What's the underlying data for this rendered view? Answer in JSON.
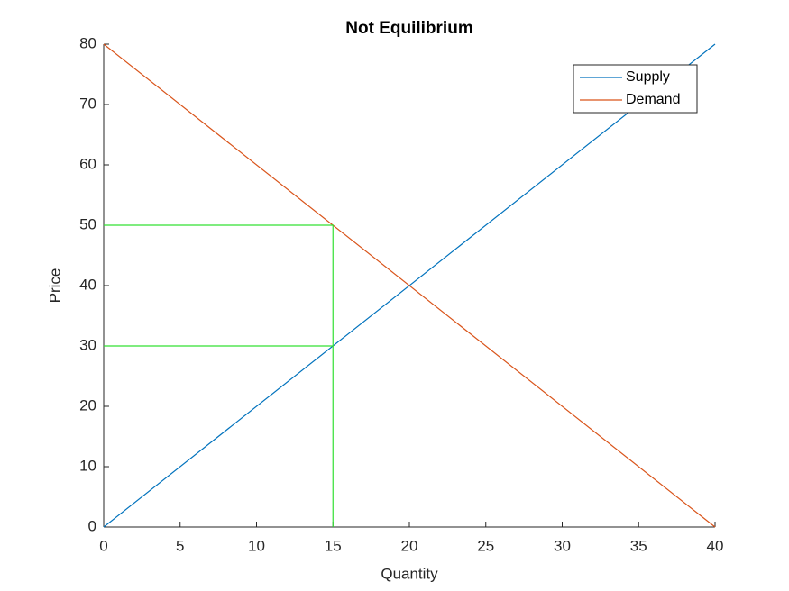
{
  "chart_data": {
    "type": "line",
    "title": "Not Equilibrium",
    "x_label": "Quantity",
    "y_label": "Price",
    "series": [
      {
        "name": "Supply",
        "color": "#0072bd",
        "x": [
          0,
          40
        ],
        "values": [
          0,
          80
        ]
      },
      {
        "name": "Demand",
        "color": "#d95319",
        "x": [
          0,
          40
        ],
        "values": [
          80,
          0
        ]
      },
      {
        "color": "#33e033",
        "x": [
          0,
          15,
          15
        ],
        "values": [
          50,
          50,
          0
        ]
      },
      {
        "color": "#33e033",
        "x": [
          0,
          15
        ],
        "values": [
          30,
          30
        ]
      }
    ],
    "xlim": [
      0,
      40
    ],
    "xticks": [
      0,
      5,
      10,
      15,
      20,
      25,
      30,
      35,
      40
    ],
    "ylim": [
      0,
      80
    ],
    "yticks": [
      0,
      10,
      20,
      30,
      40,
      50,
      60,
      70,
      80
    ],
    "grid": false,
    "legend": "northeast"
  }
}
